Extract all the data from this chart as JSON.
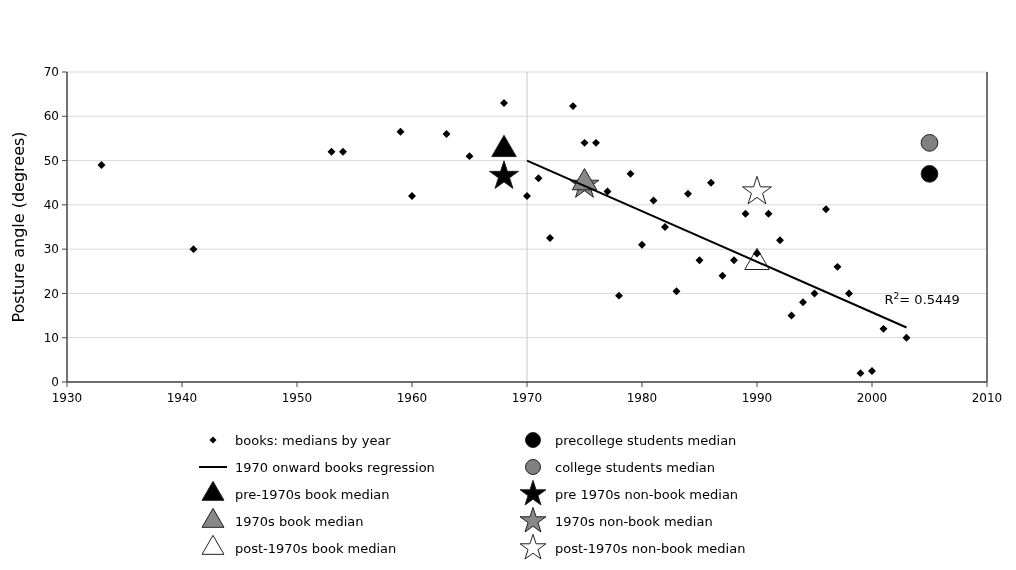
{
  "chart_data": {
    "type": "scatter",
    "ylabel": "Posture angle (degrees)",
    "xlim": [
      1930,
      2010
    ],
    "xticks": [
      1930,
      1940,
      1950,
      1960,
      1970,
      1980,
      1990,
      2000,
      2010
    ],
    "ylim": [
      0,
      70
    ],
    "yticks": [
      0,
      10,
      20,
      30,
      40,
      50,
      60,
      70
    ],
    "grid": "y",
    "legend": "bottom",
    "ref_lines": [
      {
        "axis": "x",
        "value": 1970,
        "color": "#c8c8c8"
      }
    ],
    "annotations": [
      "R$^{2}$= 0.5449"
    ],
    "series": [
      {
        "name": "books: medians by year",
        "marker": "diamond",
        "color": "#000000",
        "x": [
          1933,
          1941,
          1953,
          1954,
          1959,
          1960,
          1963,
          1965,
          1968,
          1970,
          1971,
          1972,
          1974,
          1975,
          1976,
          1977,
          1978,
          1979,
          1980,
          1981,
          1982,
          1983,
          1984,
          1985,
          1986,
          1987,
          1988,
          1989,
          1990,
          1991,
          1992,
          1993,
          1994,
          1995,
          1996,
          1997,
          1998,
          1999,
          2000,
          2001,
          2003
        ],
        "values": [
          49,
          30,
          52,
          52,
          56.5,
          42,
          56,
          51,
          63,
          42,
          46,
          32.5,
          62.3,
          54,
          54,
          43,
          19.5,
          47,
          31,
          41,
          35,
          20.5,
          42.5,
          27.5,
          45,
          24,
          27.5,
          38,
          29,
          38,
          32,
          15,
          18,
          20,
          39,
          26,
          20,
          2,
          2.5,
          12,
          10
        ]
      },
      {
        "name": "1970 onward books regression",
        "type": "line",
        "line_style": "solid",
        "color": "#000000",
        "x": [
          1970,
          2003
        ],
        "values": [
          50,
          12.3
        ]
      },
      {
        "name": "pre-1970s book median",
        "marker": "triangle",
        "color": "#000000",
        "x": [
          1968
        ],
        "values": [
          52.5
        ]
      },
      {
        "name": "1970s book median",
        "marker": "triangle",
        "color": "#888888",
        "x": [
          1975
        ],
        "values": [
          45
        ]
      },
      {
        "name": "post-1970s book median",
        "marker": "triangle",
        "color": "#ffffff",
        "x": [
          1990
        ],
        "values": [
          27
        ]
      },
      {
        "name": "precollege students median",
        "marker": "circle",
        "color": "#000000",
        "x": [
          2005
        ],
        "values": [
          47
        ]
      },
      {
        "name": "college students median",
        "marker": "circle",
        "color": "#808080",
        "x": [
          2005
        ],
        "values": [
          54
        ]
      },
      {
        "name": "pre 1970s non-book median",
        "marker": "star",
        "color": "#000000",
        "x": [
          1968
        ],
        "values": [
          46.5
        ]
      },
      {
        "name": "1970s non-book median",
        "marker": "star",
        "color": "#888888",
        "x": [
          1975
        ],
        "values": [
          44.5
        ]
      },
      {
        "name": "post-1970s non-book median",
        "marker": "star",
        "color": "#ffffff",
        "x": [
          1990
        ],
        "values": [
          43
        ]
      }
    ]
  }
}
